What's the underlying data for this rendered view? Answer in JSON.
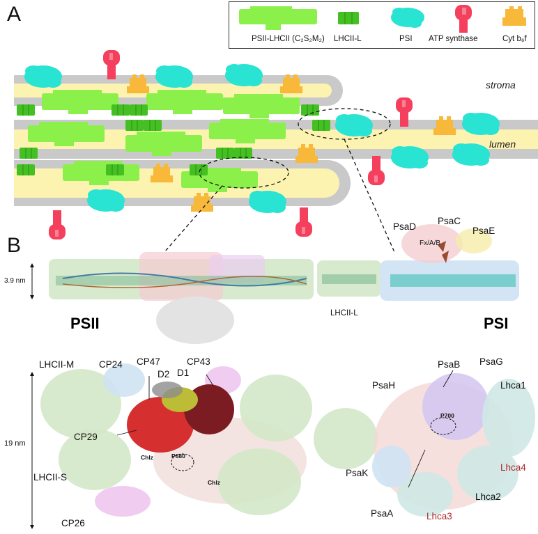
{
  "panels": {
    "a": "A",
    "b": "B"
  },
  "legend": {
    "items": [
      {
        "label": "PSII-LHCII (C₂S₂M₂)",
        "color": "#8cf04a",
        "icon": "psii-lhcii-icon"
      },
      {
        "label": "LHCII-L",
        "color": "#44c022",
        "icon": "lhcii-l-icon"
      },
      {
        "label": "PSI",
        "color": "#29e3d3",
        "icon": "psi-icon"
      },
      {
        "label": "ATP synthase",
        "color": "#f4405c",
        "icon": "atp-synthase-icon"
      },
      {
        "label": "Cyt b₆f",
        "color": "#f8b83a",
        "icon": "cyt-b6f-icon"
      }
    ]
  },
  "regions": {
    "stroma": "stroma",
    "lumen": "lumen"
  },
  "colors": {
    "membrane": "#c9c9c9",
    "lumen": "#fdf3b0",
    "psii": "#8cf04a",
    "lhcii_l": "#44c022",
    "psi": "#29e3d3",
    "atp": "#f4405c",
    "cyt": "#f8b83a",
    "label_red": "#b0282d"
  },
  "panel_b": {
    "thickness_label": "3.9 nm",
    "width_label": "19 nm",
    "psii_title": "PSII",
    "psi_title": "PSI",
    "psi_side_labels": [
      "PsaD",
      "PsaC",
      "PsaE",
      "Fₓ/A/B"
    ],
    "fx_label": "Fx/A/B",
    "lhcii_l_label": "LHCII-L",
    "psii_top_labels": {
      "lhcii_m": "LHCII-M",
      "cp24": "CP24",
      "cp47": "CP47",
      "d2": "D2",
      "d1": "D1",
      "cp43": "CP43",
      "cp29": "CP29",
      "lhcii_s": "LHCII-S",
      "cp26": "CP26",
      "p680": "P680",
      "chlz_left": "Chlz",
      "chlz_right": "Chlz"
    },
    "psi_top_labels": {
      "psab": "PsaB",
      "psag": "PsaG",
      "psah": "PsaH",
      "lhca1": "Lhca1",
      "p700": "P700",
      "psak": "PsaK",
      "lhca4": "Lhca4",
      "lhca2": "Lhca2",
      "psaa": "PsaA",
      "lhca3": "Lhca3"
    }
  }
}
